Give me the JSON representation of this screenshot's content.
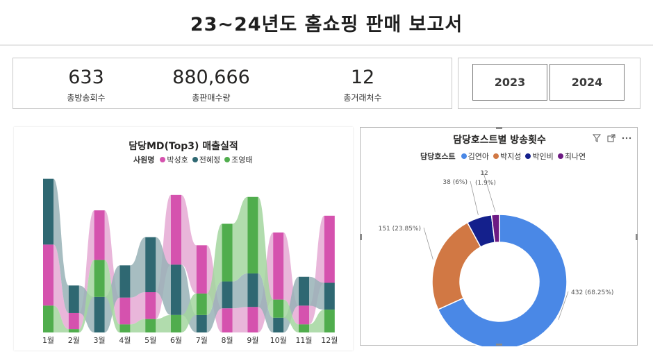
{
  "header": {
    "title": "23~24년도 홈쇼핑 판매 보고서"
  },
  "kpis": [
    {
      "value": "633",
      "label": "총방송회수"
    },
    {
      "value": "880,666",
      "label": "총판매수량"
    },
    {
      "value": "12",
      "label": "총거래처수"
    }
  ],
  "years": [
    "2023",
    "2024"
  ],
  "left_chart": {
    "title": "담당MD(Top3) 매출실적",
    "legend_title": "사원명",
    "colors": {
      "박성호": "#d552ae",
      "전혜정": "#2f6872",
      "조영태": "#50ad4d"
    },
    "ribbon_colors": {
      "박성호": "#e5a9d3",
      "전혜정": "#98b2b6",
      "조영태": "#a3d69f"
    }
  },
  "right_chart": {
    "title": "담당호스트별 방송횟수",
    "legend_title": "담당호스트",
    "icons": [
      "filter-icon",
      "focus-mode-icon",
      "more-options-icon"
    ]
  },
  "chart_data": [
    {
      "type": "bar",
      "subtype": "ribbon-stacked",
      "title": "담당MD(Top3) 매출실적",
      "legend_title": "사원명",
      "categories": [
        "1월",
        "2월",
        "3월",
        "4월",
        "5월",
        "6월",
        "7월",
        "8월",
        "9월",
        "10월",
        "11월",
        "12월"
      ],
      "series": [
        {
          "name": "박성호",
          "color": "#d552ae",
          "values": [
            91,
            24,
            74,
            40,
            40,
            104,
            72,
            36,
            38,
            100,
            28,
            100
          ]
        },
        {
          "name": "전혜정",
          "color": "#2f6872",
          "values": [
            98,
            41,
            53,
            48,
            82,
            75,
            26,
            40,
            50,
            22,
            43,
            40
          ]
        },
        {
          "name": "조영태",
          "color": "#50ad4d",
          "values": [
            40,
            5,
            55,
            12,
            20,
            26,
            32,
            86,
            114,
            27,
            12,
            34
          ]
        }
      ],
      "ylim": [
        0,
        240
      ],
      "xlabel": "",
      "ylabel": ""
    },
    {
      "type": "pie",
      "subtype": "donut",
      "title": "담당호스트별 방송횟수",
      "legend_title": "담당호스트",
      "slices": [
        {
          "name": "김연아",
          "value": 432,
          "label": "432 (68.25%)",
          "color": "#4a88e6"
        },
        {
          "name": "박지성",
          "value": 151,
          "label": "151 (23.85%)",
          "color": "#d17844"
        },
        {
          "name": "박인비",
          "value": 38,
          "label": "38 (6%)",
          "color": "#14208c"
        },
        {
          "name": "최나연",
          "value": 12,
          "label": "12 (1.9%)",
          "color": "#6d1a83"
        }
      ]
    }
  ]
}
